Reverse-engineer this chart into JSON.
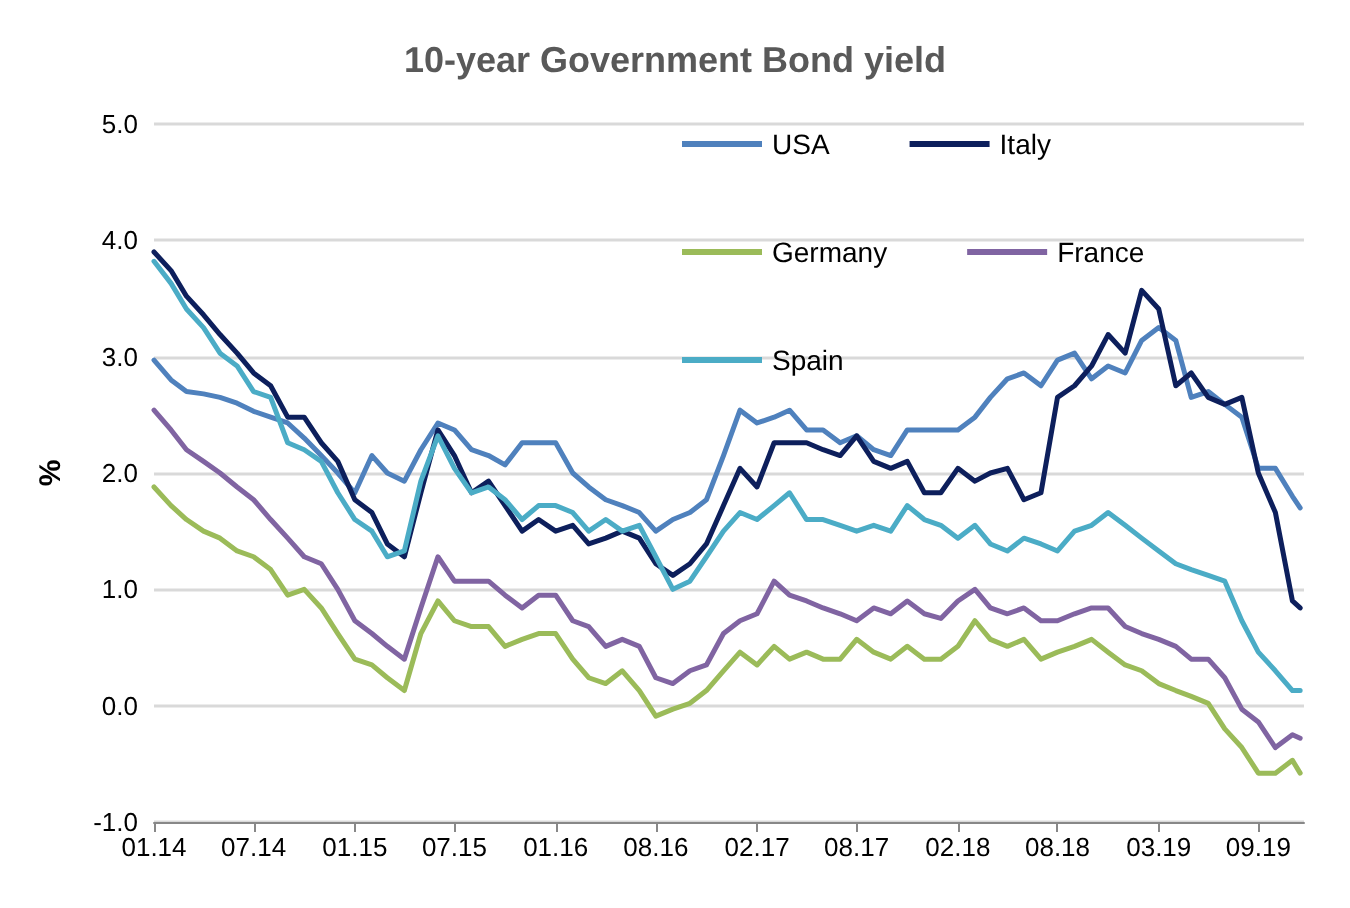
{
  "chart_data": {
    "type": "line",
    "title": "10-year Government Bond yield",
    "ylabel": "%",
    "x": [
      "2014-01",
      "2014-02",
      "2014-03",
      "2014-04",
      "2014-05",
      "2014-06",
      "2014-07",
      "2014-08",
      "2014-09",
      "2014-10",
      "2014-11",
      "2014-12",
      "2015-01",
      "2015-02",
      "2015-03",
      "2015-04",
      "2015-05",
      "2015-06",
      "2015-07",
      "2015-08",
      "2015-09",
      "2015-10",
      "2015-11",
      "2015-12",
      "2016-01",
      "2016-02",
      "2016-03",
      "2016-04",
      "2016-05",
      "2016-06",
      "2016-07",
      "2016-08",
      "2016-09",
      "2016-10",
      "2016-11",
      "2016-12",
      "2017-01",
      "2017-02",
      "2017-03",
      "2017-04",
      "2017-05",
      "2017-06",
      "2017-07",
      "2017-08",
      "2017-09",
      "2017-10",
      "2017-11",
      "2017-12",
      "2018-01",
      "2018-02",
      "2018-03",
      "2018-04",
      "2018-05",
      "2018-06",
      "2018-07",
      "2018-08",
      "2018-09",
      "2018-10",
      "2018-11",
      "2018-12",
      "2019-01",
      "2019-02",
      "2019-03",
      "2019-04",
      "2019-05",
      "2019-06",
      "2019-07",
      "2019-08",
      "2019-09",
      "2019-09-15"
    ],
    "series": [
      {
        "name": "USA",
        "color": "#4f81bd",
        "values": [
          2.97,
          2.8,
          2.7,
          2.68,
          2.65,
          2.6,
          2.53,
          2.48,
          2.43,
          2.3,
          2.15,
          2.0,
          1.83,
          2.15,
          2.0,
          1.93,
          2.2,
          2.43,
          2.37,
          2.2,
          2.15,
          2.07,
          2.26,
          2.26,
          2.26,
          2.0,
          1.88,
          1.77,
          1.72,
          1.66,
          1.5,
          1.6,
          1.66,
          1.77,
          2.15,
          2.54,
          2.43,
          2.48,
          2.54,
          2.37,
          2.37,
          2.26,
          2.32,
          2.2,
          2.15,
          2.37,
          2.37,
          2.37,
          2.37,
          2.48,
          2.65,
          2.81,
          2.86,
          2.75,
          2.97,
          3.03,
          2.81,
          2.92,
          2.86,
          3.14,
          3.25,
          3.14,
          2.65,
          2.7,
          2.59,
          2.48,
          2.04,
          2.04,
          1.8,
          1.7
        ]
      },
      {
        "name": "Italy",
        "color": "#0d1f5c",
        "values": [
          3.9,
          3.74,
          3.52,
          3.36,
          3.19,
          3.03,
          2.86,
          2.75,
          2.48,
          2.48,
          2.26,
          2.1,
          1.77,
          1.66,
          1.39,
          1.28,
          1.83,
          2.37,
          2.15,
          1.83,
          1.93,
          1.72,
          1.5,
          1.6,
          1.5,
          1.55,
          1.39,
          1.44,
          1.5,
          1.44,
          1.22,
          1.12,
          1.22,
          1.39,
          1.72,
          2.04,
          1.88,
          2.26,
          2.26,
          2.26,
          2.2,
          2.15,
          2.32,
          2.1,
          2.04,
          2.1,
          1.83,
          1.83,
          2.04,
          1.93,
          2.0,
          2.04,
          1.77,
          1.83,
          2.65,
          2.75,
          2.92,
          3.19,
          3.03,
          3.57,
          3.41,
          2.75,
          2.86,
          2.65,
          2.59,
          2.65,
          2.0,
          1.66,
          0.9,
          0.84
        ]
      },
      {
        "name": "Germany",
        "color": "#9bbb59",
        "values": [
          1.88,
          1.72,
          1.6,
          1.5,
          1.44,
          1.33,
          1.28,
          1.17,
          0.95,
          1.0,
          0.84,
          0.62,
          0.4,
          0.35,
          0.24,
          0.13,
          0.62,
          0.9,
          0.73,
          0.68,
          0.68,
          0.51,
          0.57,
          0.62,
          0.62,
          0.4,
          0.24,
          0.19,
          0.3,
          0.13,
          -0.09,
          -0.03,
          0.02,
          0.13,
          0.3,
          0.46,
          0.35,
          0.51,
          0.4,
          0.46,
          0.4,
          0.4,
          0.57,
          0.46,
          0.4,
          0.51,
          0.4,
          0.4,
          0.51,
          0.73,
          0.57,
          0.51,
          0.57,
          0.4,
          0.46,
          0.51,
          0.57,
          0.46,
          0.35,
          0.3,
          0.19,
          0.13,
          0.08,
          0.02,
          -0.2,
          -0.36,
          -0.58,
          -0.58,
          -0.47,
          -0.58
        ]
      },
      {
        "name": "France",
        "color": "#8064a2",
        "values": [
          2.54,
          2.37,
          2.2,
          2.1,
          2.0,
          1.88,
          1.77,
          1.6,
          1.44,
          1.28,
          1.22,
          1.0,
          0.73,
          0.62,
          0.51,
          0.4,
          0.84,
          1.28,
          1.07,
          1.07,
          1.07,
          0.95,
          0.84,
          0.95,
          0.95,
          0.73,
          0.68,
          0.51,
          0.57,
          0.51,
          0.24,
          0.19,
          0.3,
          0.35,
          0.62,
          0.73,
          0.79,
          1.07,
          0.95,
          0.9,
          0.84,
          0.79,
          0.73,
          0.84,
          0.79,
          0.9,
          0.79,
          0.75,
          0.9,
          1.0,
          0.84,
          0.79,
          0.84,
          0.73,
          0.73,
          0.79,
          0.84,
          0.84,
          0.68,
          0.62,
          0.57,
          0.51,
          0.4,
          0.4,
          0.24,
          -0.03,
          -0.14,
          -0.36,
          -0.25,
          -0.28
        ]
      },
      {
        "name": "Spain",
        "color": "#4bacc6",
        "values": [
          3.82,
          3.63,
          3.41,
          3.25,
          3.03,
          2.92,
          2.7,
          2.65,
          2.26,
          2.2,
          2.1,
          1.83,
          1.6,
          1.5,
          1.28,
          1.33,
          1.93,
          2.32,
          2.04,
          1.83,
          1.88,
          1.77,
          1.6,
          1.72,
          1.72,
          1.66,
          1.5,
          1.6,
          1.5,
          1.55,
          1.28,
          1.0,
          1.07,
          1.28,
          1.5,
          1.66,
          1.6,
          1.72,
          1.83,
          1.6,
          1.6,
          1.55,
          1.5,
          1.55,
          1.5,
          1.72,
          1.6,
          1.55,
          1.44,
          1.55,
          1.39,
          1.33,
          1.44,
          1.39,
          1.33,
          1.5,
          1.55,
          1.66,
          1.55,
          1.44,
          1.33,
          1.22,
          1.17,
          1.12,
          1.07,
          0.73,
          0.46,
          0.3,
          0.13,
          0.13
        ]
      }
    ],
    "xlim": [
      "2014-01",
      "2019-09-22"
    ],
    "xticks": [
      {
        "value": "2014-01",
        "label": "01.14"
      },
      {
        "value": "2014-07",
        "label": "07.14"
      },
      {
        "value": "2015-01",
        "label": "01.15"
      },
      {
        "value": "2015-07",
        "label": "07.15"
      },
      {
        "value": "2016-01",
        "label": "01.16"
      },
      {
        "value": "2016-07",
        "label": "08.16"
      },
      {
        "value": "2017-01",
        "label": "02.17"
      },
      {
        "value": "2017-07",
        "label": "08.17"
      },
      {
        "value": "2018-01",
        "label": "02.18"
      },
      {
        "value": "2018-07",
        "label": "08.18"
      },
      {
        "value": "2019-01",
        "label": "03.19"
      },
      {
        "value": "2019-07",
        "label": "09.19"
      }
    ],
    "ylim": [
      -1,
      5
    ],
    "yticks": [
      {
        "value": -1,
        "label": "-1.0"
      },
      {
        "value": 0,
        "label": "0.0"
      },
      {
        "value": 1,
        "label": "1.0"
      },
      {
        "value": 2,
        "label": "2.0"
      },
      {
        "value": 3,
        "label": "3.0"
      },
      {
        "value": 4,
        "label": "4.0"
      },
      {
        "value": 5,
        "label": "5.0"
      }
    ],
    "grid": "y",
    "legend": "top right",
    "marker": "none",
    "line_style": "solid"
  }
}
